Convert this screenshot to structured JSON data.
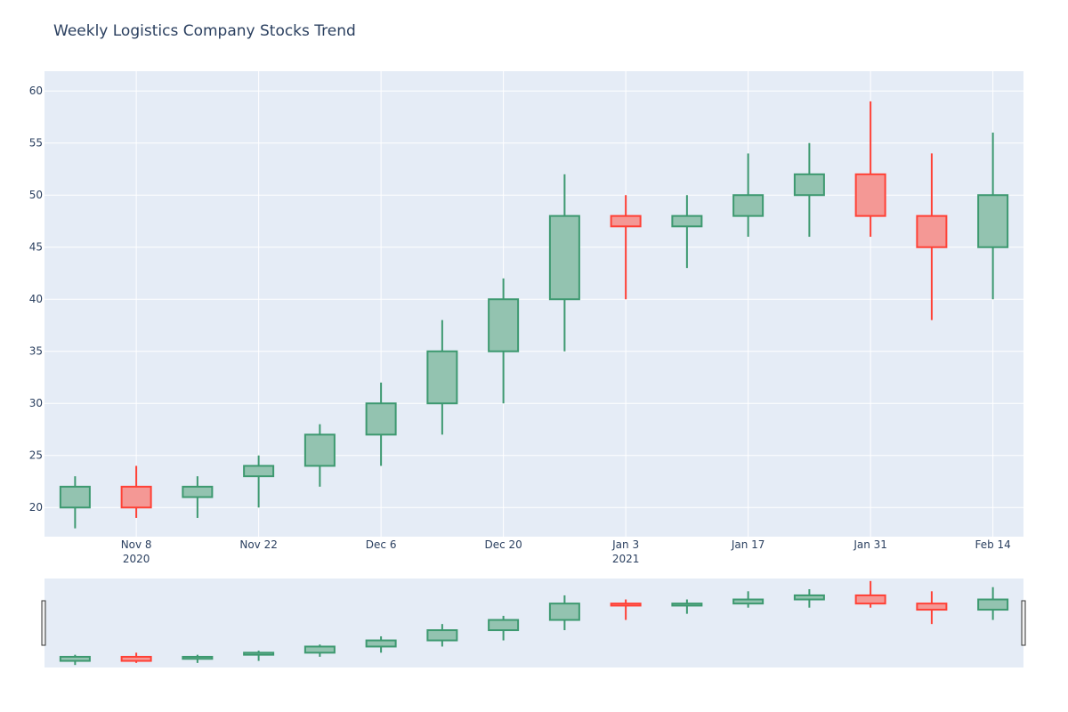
{
  "chart_data": {
    "type": "candlestick",
    "title": "Weekly Logistics Company Stocks Trend",
    "xlabel": "",
    "ylabel": "",
    "ylim": [
      17.2,
      61.9
    ],
    "grid": true,
    "rangeslider": true,
    "colors": {
      "increasing": "#3d9970",
      "increasing_fill": "#93c3b0",
      "decreasing": "#ff4136",
      "decreasing_fill": "#f49895",
      "plot_bg": "#e5ecf6",
      "grid": "#ffffff",
      "text": "#2a3f5f"
    },
    "x_tick_labels": [
      {
        "date": "2020-11-08",
        "line1": "Nov 8",
        "line2": "2020"
      },
      {
        "date": "2020-11-22",
        "line1": "Nov 22",
        "line2": ""
      },
      {
        "date": "2020-12-06",
        "line1": "Dec 6",
        "line2": ""
      },
      {
        "date": "2020-12-20",
        "line1": "Dec 20",
        "line2": ""
      },
      {
        "date": "2021-01-03",
        "line1": "Jan 3",
        "line2": "2021"
      },
      {
        "date": "2021-01-17",
        "line1": "Jan 17",
        "line2": ""
      },
      {
        "date": "2021-01-31",
        "line1": "Jan 31",
        "line2": ""
      },
      {
        "date": "2021-02-14",
        "line1": "Feb 14",
        "line2": ""
      }
    ],
    "y_tick_labels": [
      "20",
      "25",
      "30",
      "35",
      "40",
      "45",
      "50",
      "55",
      "60"
    ],
    "series": [
      {
        "date": "2020-11-01",
        "open": 20,
        "high": 23,
        "low": 18,
        "close": 22
      },
      {
        "date": "2020-11-08",
        "open": 22,
        "high": 24,
        "low": 19,
        "close": 20
      },
      {
        "date": "2020-11-15",
        "open": 21,
        "high": 23,
        "low": 19,
        "close": 22
      },
      {
        "date": "2020-11-22",
        "open": 23,
        "high": 25,
        "low": 20,
        "close": 24
      },
      {
        "date": "2020-11-29",
        "open": 24,
        "high": 28,
        "low": 22,
        "close": 27
      },
      {
        "date": "2020-12-06",
        "open": 27,
        "high": 32,
        "low": 24,
        "close": 30
      },
      {
        "date": "2020-12-13",
        "open": 30,
        "high": 38,
        "low": 27,
        "close": 35
      },
      {
        "date": "2020-12-20",
        "open": 35,
        "high": 42,
        "low": 30,
        "close": 40
      },
      {
        "date": "2020-12-27",
        "open": 40,
        "high": 52,
        "low": 35,
        "close": 48
      },
      {
        "date": "2021-01-03",
        "open": 48,
        "high": 50,
        "low": 40,
        "close": 47
      },
      {
        "date": "2021-01-10",
        "open": 47,
        "high": 50,
        "low": 43,
        "close": 48
      },
      {
        "date": "2021-01-17",
        "open": 48,
        "high": 54,
        "low": 46,
        "close": 50
      },
      {
        "date": "2021-01-24",
        "open": 50,
        "high": 55,
        "low": 46,
        "close": 52
      },
      {
        "date": "2021-01-31",
        "open": 52,
        "high": 59,
        "low": 46,
        "close": 48
      },
      {
        "date": "2021-02-07",
        "open": 48,
        "high": 54,
        "low": 38,
        "close": 45
      },
      {
        "date": "2021-02-14",
        "open": 45,
        "high": 56,
        "low": 40,
        "close": 50
      }
    ]
  }
}
